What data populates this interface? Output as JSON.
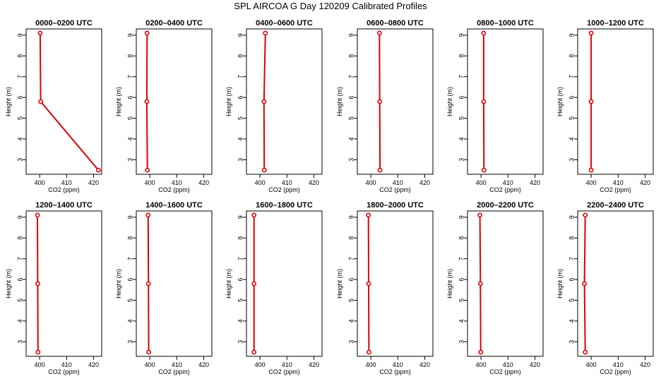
{
  "chart_data": {
    "type": "line",
    "title": "SPL AIRCOA G  Day 120209  Calibrated Profiles",
    "xlabel": "CO2 (ppm)",
    "ylabel": "Height (m)",
    "xlim": [
      395,
      423
    ],
    "ylim": [
      2.3,
      9.3
    ],
    "xticks": [
      400,
      410,
      420
    ],
    "yticks": [
      3,
      4,
      5,
      6,
      7,
      8,
      9
    ],
    "heights": [
      9.1,
      5.8,
      2.5
    ],
    "colors": {
      "line": "#dd0000",
      "frame": "#000000"
    },
    "panels": [
      {
        "title": "0000–0200 UTC",
        "co2": [
          400.2,
          400.4,
          421.8
        ]
      },
      {
        "title": "0200–0400 UTC",
        "co2": [
          399.0,
          398.9,
          399.1
        ]
      },
      {
        "title": "0400–0600 UTC",
        "co2": [
          402.0,
          401.5,
          401.6
        ]
      },
      {
        "title": "0600–0800 UTC",
        "co2": [
          403.2,
          403.3,
          403.4
        ]
      },
      {
        "title": "0800–1000 UTC",
        "co2": [
          401.0,
          401.0,
          401.1
        ]
      },
      {
        "title": "1000–1200 UTC",
        "co2": [
          400.0,
          400.0,
          400.0
        ]
      },
      {
        "title": "1200–1400 UTC",
        "co2": [
          399.2,
          399.3,
          399.4
        ]
      },
      {
        "title": "1400–1600 UTC",
        "co2": [
          399.4,
          399.5,
          399.6
        ]
      },
      {
        "title": "1600–1800 UTC",
        "co2": [
          397.8,
          397.8,
          397.8
        ]
      },
      {
        "title": "1800–2000 UTC",
        "co2": [
          399.1,
          399.2,
          399.3
        ]
      },
      {
        "title": "2000–2200 UTC",
        "co2": [
          399.6,
          399.8,
          399.9
        ]
      },
      {
        "title": "2200–2400 UTC",
        "co2": [
          397.8,
          397.5,
          397.8
        ]
      }
    ]
  }
}
